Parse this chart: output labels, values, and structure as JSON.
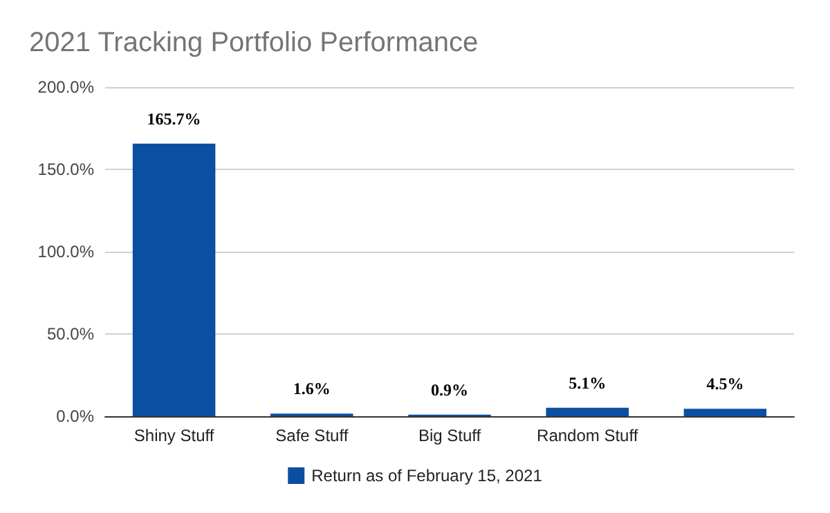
{
  "chart_data": {
    "type": "bar",
    "title": "2021 Tracking Portfolio Performance",
    "categories": [
      "Shiny Stuff",
      "Safe Stuff",
      "Big Stuff",
      "Random Stuff",
      null
    ],
    "series": [
      {
        "name": "Return as of February 15, 2021",
        "color": "#0b4fa2",
        "values": [
          165.7,
          1.6,
          0.9,
          5.1,
          4.5
        ],
        "value_labels": [
          "165.7%",
          "1.6%",
          "0.9%",
          "5.1%",
          "4.5%"
        ]
      }
    ],
    "ylim": [
      0,
      200
    ],
    "yticks": [
      {
        "value": 0,
        "label": "0.0%"
      },
      {
        "value": 50,
        "label": "50.0%"
      },
      {
        "value": 100,
        "label": "100.0%"
      },
      {
        "value": 150,
        "label": "150.0%"
      },
      {
        "value": 200,
        "label": "200.0%"
      }
    ],
    "grid": "y",
    "legend": "bottom"
  }
}
